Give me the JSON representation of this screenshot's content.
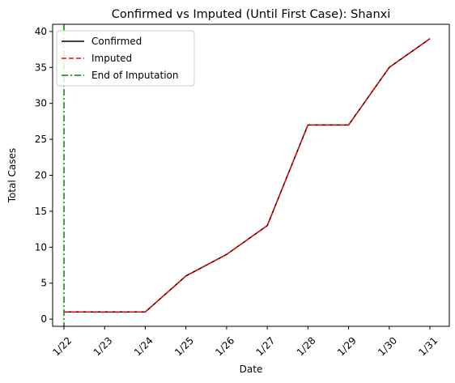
{
  "chart_data": {
    "type": "line",
    "title": "Confirmed vs Imputed (Until First Case): Shanxi",
    "xlabel": "Date",
    "ylabel": "Total Cases",
    "categories": [
      "1/22",
      "1/23",
      "1/24",
      "1/25",
      "1/26",
      "1/27",
      "1/28",
      "1/29",
      "1/30",
      "1/31"
    ],
    "ylim": [
      -1,
      41
    ],
    "yticks": [
      0,
      5,
      10,
      15,
      20,
      25,
      30,
      35,
      40
    ],
    "ytick_labels": [
      "0",
      "5",
      "10",
      "15",
      "20",
      "25",
      "30",
      "35",
      "40"
    ],
    "series": [
      {
        "name": "Confirmed",
        "values": [
          1,
          1,
          1,
          6,
          9,
          13,
          27,
          27,
          35,
          39
        ],
        "color": "#000000",
        "style": "solid"
      },
      {
        "name": "Imputed",
        "values": [
          1,
          1,
          1,
          6,
          9,
          13,
          27,
          27,
          35,
          39
        ],
        "color": "#ff0000",
        "style": "dashed"
      }
    ],
    "vline": {
      "name": "End of Imputation",
      "x": "1/22",
      "color": "#008000",
      "style": "dashdot"
    },
    "legend": {
      "position": "top-left",
      "entries": [
        "Confirmed",
        "Imputed",
        "End of Imputation"
      ]
    },
    "grid": false
  }
}
